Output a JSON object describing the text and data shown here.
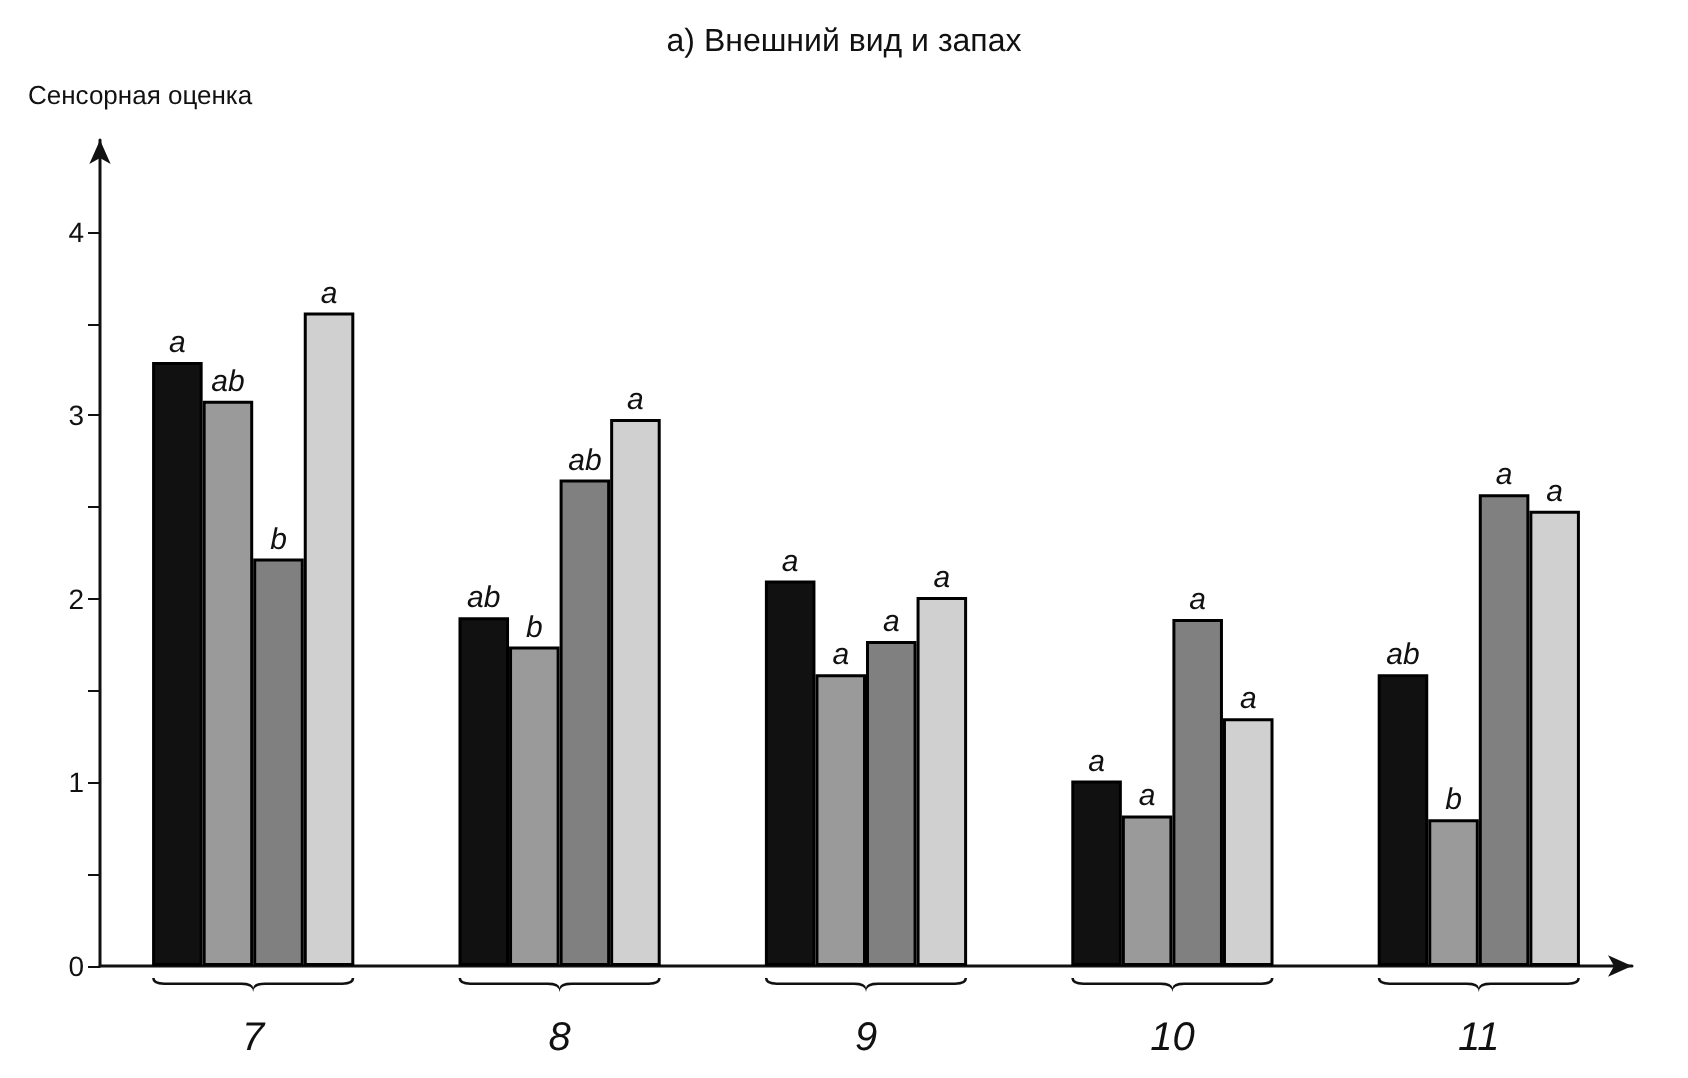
{
  "chart_data": {
    "type": "bar",
    "title": "а) Внешний вид и запах",
    "ylabel": "Сенсорная оценка",
    "categories": [
      "7",
      "8",
      "9",
      "10",
      "11"
    ],
    "series": [
      {
        "color": "#111111",
        "values": [
          3.29,
          1.9,
          2.1,
          1.01,
          1.59
        ],
        "value_labels": [
          "a",
          "ab",
          "a",
          "a",
          "ab"
        ]
      },
      {
        "color": "#9a9a9a",
        "values": [
          3.08,
          1.74,
          1.59,
          0.82,
          0.8
        ],
        "value_labels": [
          "ab",
          "b",
          "a",
          "a",
          "b"
        ]
      },
      {
        "color": "#808080",
        "values": [
          2.22,
          2.65,
          1.77,
          1.89,
          2.57
        ],
        "value_labels": [
          "b",
          "ab",
          "a",
          "a",
          "a"
        ]
      },
      {
        "color": "#d0d0d0",
        "values": [
          3.56,
          2.98,
          2.01,
          1.35,
          2.48
        ],
        "value_labels": [
          "a",
          "a",
          "a",
          "a",
          "a"
        ]
      }
    ],
    "ylim": [
      0,
      4.5
    ],
    "yticks": [
      0,
      {
        "value": 0.5,
        "label": null
      },
      1,
      {
        "value": 1.5,
        "label": null
      },
      2,
      {
        "value": 2.5,
        "label": null
      },
      3,
      {
        "value": 3.5,
        "label": null
      },
      4
    ],
    "grid": false
  }
}
